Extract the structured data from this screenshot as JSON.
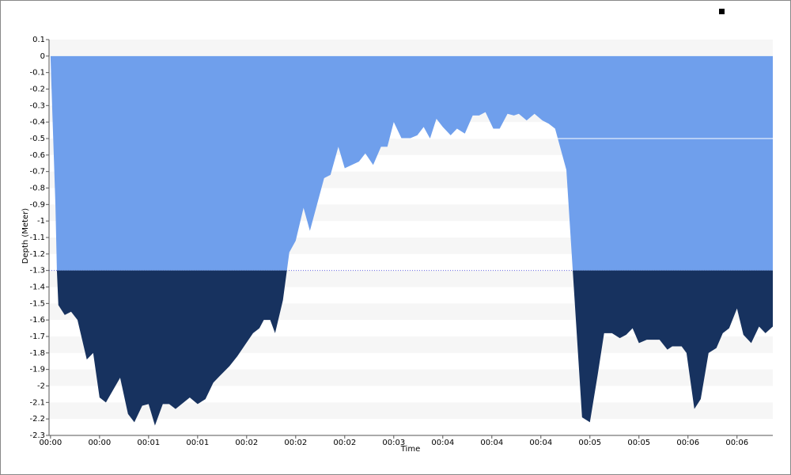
{
  "chart_data": {
    "type": "area",
    "y_label": "Depth (Meter)",
    "x_label": "Time",
    "x": [
      0,
      0.03,
      0.1,
      0.13,
      0.16,
      0.29,
      0.42,
      0.55,
      0.74,
      0.87,
      1,
      1.13,
      1.42,
      1.58,
      1.71,
      1.87,
      2,
      2.13,
      2.29,
      2.42,
      2.55,
      2.84,
      3,
      3.16,
      3.32,
      3.45,
      3.65,
      3.81,
      3.97,
      4.13,
      4.26,
      4.35,
      4.48,
      4.58,
      4.74,
      4.87,
      5,
      5.16,
      5.29,
      5.58,
      5.71,
      5.87,
      6,
      6.29,
      6.42,
      6.58,
      6.74,
      6.87,
      7,
      7.16,
      7.32,
      7.48,
      7.61,
      7.74,
      7.87,
      8,
      8.16,
      8.29,
      8.45,
      8.61,
      8.74,
      8.87,
      9.03,
      9.16,
      9.32,
      9.45,
      9.55,
      9.71,
      9.87,
      10.03,
      10.16,
      10.29,
      10.52,
      10.65,
      10.84,
      11,
      11.16,
      11.29,
      11.45,
      11.61,
      11.74,
      11.87,
      12,
      12.16,
      12.42,
      12.58,
      12.68,
      12.87,
      12.97,
      13.13,
      13.26,
      13.42,
      13.58,
      13.71,
      13.84,
      14,
      14.13,
      14.29,
      14.45,
      14.58,
      14.73
    ],
    "values": [
      0,
      -0.28,
      -0.9,
      -1.3,
      -1.51,
      -1.57,
      -1.55,
      -1.6,
      -1.84,
      -1.8,
      -2.07,
      -2.1,
      -1.95,
      -2.17,
      -2.22,
      -2.12,
      -2.11,
      -2.24,
      -2.11,
      -2.11,
      -2.14,
      -2.07,
      -2.11,
      -2.08,
      -1.98,
      -1.94,
      -1.88,
      -1.82,
      -1.75,
      -1.68,
      -1.65,
      -1.6,
      -1.6,
      -1.68,
      -1.48,
      -1.19,
      -1.12,
      -0.92,
      -1.06,
      -0.74,
      -0.72,
      -0.55,
      -0.68,
      -0.64,
      -0.59,
      -0.66,
      -0.55,
      -0.55,
      -0.4,
      -0.5,
      -0.5,
      -0.48,
      -0.43,
      -0.5,
      -0.38,
      -0.43,
      -0.48,
      -0.44,
      -0.47,
      -0.36,
      -0.36,
      -0.34,
      -0.44,
      -0.44,
      -0.35,
      -0.36,
      -0.35,
      -0.39,
      -0.35,
      -0.39,
      -0.41,
      -0.44,
      -0.69,
      -1.3,
      -2.19,
      -2.22,
      -1.93,
      -1.68,
      -1.68,
      -1.71,
      -1.69,
      -1.65,
      -1.74,
      -1.72,
      -1.72,
      -1.78,
      -1.76,
      -1.76,
      -1.8,
      -2.14,
      -2.08,
      -1.8,
      -1.77,
      -1.68,
      -1.65,
      -1.53,
      -1.69,
      -1.74,
      -1.64,
      -1.68,
      -1.64
    ],
    "threshold": -1.3,
    "reference_line": -0.5,
    "color_above": "#6f9fec",
    "color_below": "#17325f",
    "xlim": [
      -0.03,
      14.73
    ],
    "ylim": [
      -2.3,
      0.1
    ],
    "xticks": [
      {
        "value": 0,
        "label": "00:00"
      },
      {
        "value": 1,
        "label": "00:00"
      },
      {
        "value": 2,
        "label": "00:01"
      },
      {
        "value": 3,
        "label": "00:01"
      },
      {
        "value": 4,
        "label": "00:02"
      },
      {
        "value": 5,
        "label": "00:02"
      },
      {
        "value": 6,
        "label": "00:02"
      },
      {
        "value": 7,
        "label": "00:03"
      },
      {
        "value": 8,
        "label": "00:04"
      },
      {
        "value": 9,
        "label": "00:04"
      },
      {
        "value": 10,
        "label": "00:04"
      },
      {
        "value": 11,
        "label": "00:05"
      },
      {
        "value": 12,
        "label": "00:05"
      },
      {
        "value": 13,
        "label": "00:06"
      },
      {
        "value": 14,
        "label": "00:06"
      }
    ],
    "yticks": [
      0.1,
      0,
      -0.1,
      -0.2,
      -0.3,
      -0.4,
      -0.5,
      -0.6,
      -0.7,
      -0.8,
      -0.9,
      -1,
      -1.1,
      -1.2,
      -1.3,
      -1.4,
      -1.5,
      -1.6,
      -1.7,
      -1.8,
      -1.9,
      -2,
      -2.1,
      -2.2,
      -2.3
    ]
  }
}
